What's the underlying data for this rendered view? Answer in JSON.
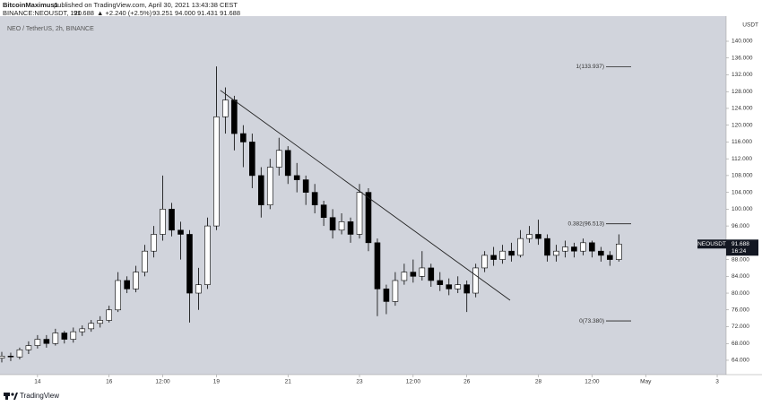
{
  "header": {
    "author": "BitcoinMaximus1",
    "published": "published on TradingView.com, April 30, 2021 13:43:38 CEST",
    "symbol": "BINANCE:NEOUSDT, 120",
    "last": "91.688",
    "change": "▲ +2.240 (+2.5%)",
    "ohlc": "93.251 94.000 91.431 91.688"
  },
  "chart_data": {
    "type": "candlestick",
    "title": "NEO / TetherUS, 2h, BINANCE",
    "y_axis_unit": "USDT",
    "x": [
      13,
      13.25,
      13.5,
      13.75,
      14,
      14.25,
      14.5,
      14.75,
      15,
      15.25,
      15.5,
      15.75,
      16,
      16.25,
      16.5,
      16.75,
      17,
      17.25,
      17.5,
      17.75,
      18,
      18.25,
      18.5,
      18.75,
      19,
      19.25,
      19.5,
      19.75,
      20,
      20.25,
      20.5,
      20.75,
      21,
      21.25,
      21.5,
      21.75,
      22,
      22.25,
      22.5,
      22.75,
      23,
      23.25,
      23.5,
      23.75,
      24,
      24.25,
      24.5,
      24.75,
      25,
      25.25,
      25.5,
      25.75,
      26,
      26.25,
      26.5,
      26.75,
      27,
      27.25,
      27.5,
      27.75,
      28,
      28.25,
      28.5,
      28.75,
      29,
      29.25,
      29.5,
      29.75,
      30,
      30.25
    ],
    "candles": [
      [
        64.5,
        66,
        63.5,
        65
      ],
      [
        65,
        65.8,
        63.8,
        64.8
      ],
      [
        64.8,
        67,
        64.2,
        66.5
      ],
      [
        66.5,
        68.5,
        65.5,
        67.5
      ],
      [
        67.5,
        70,
        66.8,
        69
      ],
      [
        69,
        70,
        67,
        68
      ],
      [
        68,
        71.5,
        67.5,
        70.5
      ],
      [
        70.5,
        71,
        68,
        69
      ],
      [
        69,
        71.8,
        68.2,
        70.8
      ],
      [
        70.8,
        72.3,
        69.8,
        71.5
      ],
      [
        71.5,
        73.6,
        70.8,
        72.8
      ],
      [
        72.8,
        74.5,
        71.8,
        73.5
      ],
      [
        73.5,
        77,
        73,
        76
      ],
      [
        76,
        85,
        75.5,
        83
      ],
      [
        83,
        84,
        80,
        81
      ],
      [
        81,
        86.5,
        80.2,
        85
      ],
      [
        85,
        91.5,
        84,
        90
      ],
      [
        90,
        96,
        88.5,
        94
      ],
      [
        94,
        108,
        92.5,
        100
      ],
      [
        100,
        101.5,
        93.5,
        95
      ],
      [
        95,
        97,
        88,
        94
      ],
      [
        94,
        95,
        73,
        80
      ],
      [
        80,
        86,
        76,
        82
      ],
      [
        82,
        98,
        81,
        96
      ],
      [
        96,
        134,
        95,
        122
      ],
      [
        122,
        129,
        118,
        126
      ],
      [
        126,
        127,
        114,
        118
      ],
      [
        118,
        120,
        110,
        116
      ],
      [
        116,
        118,
        105,
        108
      ],
      [
        108,
        110,
        98,
        101
      ],
      [
        101,
        112,
        100,
        110
      ],
      [
        110,
        117,
        108,
        114
      ],
      [
        114,
        115,
        106,
        108
      ],
      [
        108,
        111,
        104,
        107
      ],
      [
        107,
        108,
        101,
        104
      ],
      [
        104,
        106,
        99,
        101
      ],
      [
        101,
        102,
        96,
        98
      ],
      [
        98,
        100,
        93,
        95
      ],
      [
        95,
        99,
        94,
        97
      ],
      [
        97,
        98,
        92,
        94
      ],
      [
        94,
        106,
        93,
        104
      ],
      [
        104,
        105,
        90,
        92
      ],
      [
        92,
        93,
        74.5,
        81
      ],
      [
        81,
        82,
        75,
        78
      ],
      [
        78,
        85,
        77,
        83
      ],
      [
        83,
        87,
        82,
        85
      ],
      [
        85,
        88,
        82.5,
        84
      ],
      [
        84,
        90,
        83,
        86
      ],
      [
        86,
        87,
        81.5,
        83
      ],
      [
        83,
        85,
        80.5,
        82
      ],
      [
        82,
        83.5,
        79.5,
        81
      ],
      [
        81,
        84,
        80,
        82
      ],
      [
        82,
        83,
        75.5,
        80
      ],
      [
        80,
        87,
        79,
        86
      ],
      [
        86,
        90,
        85,
        89
      ],
      [
        89,
        91,
        86.5,
        88
      ],
      [
        88,
        91.5,
        87,
        90
      ],
      [
        90,
        92,
        87.5,
        89
      ],
      [
        89,
        95,
        88.5,
        93
      ],
      [
        93,
        96,
        92,
        94
      ],
      [
        94,
        97.5,
        91.5,
        93
      ],
      [
        93,
        94,
        87.5,
        89
      ],
      [
        89,
        91.5,
        87.5,
        90
      ],
      [
        90,
        92.5,
        88.5,
        91
      ],
      [
        91,
        92,
        88.5,
        90
      ],
      [
        90,
        93,
        89,
        92
      ],
      [
        92,
        92.5,
        88.5,
        90
      ],
      [
        90,
        91,
        87.5,
        89
      ],
      [
        89,
        90,
        86.5,
        88
      ],
      [
        88,
        94,
        87.5,
        91.688
      ]
    ],
    "up_color": "#ffffff",
    "down_color": "#000000",
    "wick_color": "#000000",
    "background": "#d1d4dc",
    "xlim": [
      12.95,
      33.25
    ],
    "ylim": [
      60.58,
      145.98
    ],
    "xticks": [
      14,
      16,
      {
        "value": 17.5,
        "label": "12:00"
      },
      19,
      21,
      23,
      {
        "value": 24.5,
        "label": "12:00"
      },
      26,
      28,
      {
        "value": 29.5,
        "label": "12:00"
      },
      {
        "value": 31,
        "label": "May"
      },
      {
        "value": 33,
        "label": "3"
      }
    ],
    "yticks": [
      {
        "value": 64,
        "label": "64.000"
      },
      {
        "value": 68,
        "label": "68.000"
      },
      {
        "value": 72,
        "label": "72.000"
      },
      {
        "value": 76,
        "label": "76.000"
      },
      {
        "value": 80,
        "label": "80.000"
      },
      {
        "value": 84,
        "label": "84.000"
      },
      {
        "value": 88,
        "label": "88.000"
      },
      {
        "value": 92,
        "label": "92.000"
      },
      {
        "value": 96,
        "label": "96.000"
      },
      {
        "value": 100,
        "label": "100.000"
      },
      {
        "value": 104,
        "label": "104.000"
      },
      {
        "value": 108,
        "label": "108.000"
      },
      {
        "value": 112,
        "label": "112.000"
      },
      {
        "value": 116,
        "label": "116.000"
      },
      {
        "value": 120,
        "label": "120.000"
      },
      {
        "value": 124,
        "label": "124.000"
      },
      {
        "value": 128,
        "label": "128.000"
      },
      {
        "value": 132,
        "label": "132.000"
      },
      {
        "value": 136,
        "label": "136.000"
      },
      {
        "value": 140,
        "label": "140.000"
      }
    ],
    "trendline": {
      "x": [
        19.11,
        27.21
      ],
      "y": [
        128.3,
        78.3
      ]
    },
    "fib_levels": [
      {
        "value": 133.937,
        "label": "1(133.937)"
      },
      {
        "value": 96.513,
        "label": "0.382(96.513)"
      },
      {
        "value": 73.38,
        "label": "0(73.380)"
      }
    ],
    "last_price": {
      "symbol": "NEOUSDT",
      "price": "91.688",
      "countdown": "16:24"
    }
  },
  "footer": {
    "brand": "TradingView"
  }
}
